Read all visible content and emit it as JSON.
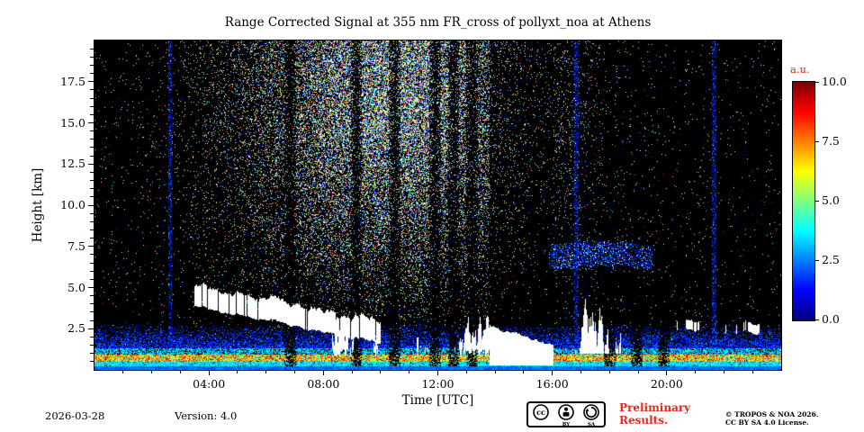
{
  "chart_data": {
    "type": "heatmap",
    "title": "Range Corrected Signal at 355 nm FR_cross of pollyxt_noa at Athens",
    "xlabel": "Time [UTC]",
    "ylabel": "Height [km]",
    "colorbar_label": "a.u.",
    "colormap": "jet",
    "grid": false,
    "x_range_hours": [
      0,
      24
    ],
    "y_range_km": [
      0,
      20
    ],
    "clim": [
      0,
      10
    ],
    "x_ticks": [
      {
        "value": 4,
        "label": "04:00"
      },
      {
        "value": 8,
        "label": "08:00"
      },
      {
        "value": 12,
        "label": "12:00"
      },
      {
        "value": 16,
        "label": "16:00"
      },
      {
        "value": 20,
        "label": "20:00"
      }
    ],
    "y_ticks": [
      {
        "value": 2.5,
        "label": "2.5"
      },
      {
        "value": 5.0,
        "label": "5.0"
      },
      {
        "value": 7.5,
        "label": "7.5"
      },
      {
        "value": 10.0,
        "label": "10.0"
      },
      {
        "value": 12.5,
        "label": "12.5"
      },
      {
        "value": 15.0,
        "label": "15.0"
      },
      {
        "value": 17.5,
        "label": "17.5"
      }
    ],
    "colorbar_ticks": [
      {
        "value": 0.0,
        "label": "0.0"
      },
      {
        "value": 2.5,
        "label": "2.5"
      },
      {
        "value": 5.0,
        "label": "5.0"
      },
      {
        "value": 7.5,
        "label": "7.5"
      },
      {
        "value": 10.0,
        "label": "10.0"
      }
    ],
    "features": {
      "description": "Lidar range-corrected-signal quicklook: dense boundary-layer aerosol below ~2.5 km all day with a strong overlap peak near 0.5-1 km; saturated (white) cloud band descending from ~5.2 km at 03:30 to ~2.9 km by 10:00; broken low clouds 08:20-13:55 between ~0.8-3.2 km; opaque low cloud 13:50-16:05 below ~2.6 km with attenuation above; elevated layer at ~6.2-7.7 km from 16:00-19:30; scattered clouds 16:50-18:25 up to ~4.3 km; thin cloud streaks near 2.6 km 20:00-23:50; strong solar background speckle noise 06:00-15:00 increasing with height; narrow full-height signal columns near 02:40, 16:50 and 21:40.",
      "daytime_noise": {
        "t_center": 10.3,
        "t_sigma": 3.0
      },
      "surface_layer_top_km": 1.3,
      "aerosol_top_km": 2.7,
      "cloud_descent": {
        "t_start": 3.5,
        "h_start": 5.2,
        "t_end": 10.0,
        "h_end": 2.9
      },
      "broken_clouds": {
        "t_start": 8.3,
        "t_end": 13.9,
        "h_min": 0.8,
        "h_max": 3.2
      },
      "opaque_cloud": {
        "t_start": 13.8,
        "t_end": 16.05,
        "h_min": 0.3,
        "h_max": 2.6
      },
      "elevated_layer": {
        "t_start": 15.9,
        "t_end": 19.5,
        "h_min": 6.2,
        "h_max": 7.7
      },
      "evening_clouds": {
        "t_start": 16.8,
        "t_end": 18.4,
        "h_min": 1.0,
        "h_max": 4.3
      },
      "late_streaks": {
        "t_start": 20.0,
        "t_end": 23.9,
        "h_km": 2.6
      },
      "dark_stripes_t": [
        6.85,
        9.15,
        10.5,
        11.9,
        12.55,
        13.2,
        18.0,
        18.95,
        19.9
      ],
      "column_artifacts_t": [
        2.65,
        16.85,
        21.65
      ]
    }
  },
  "footer": {
    "date": "2026-03-28",
    "version": "Version: 4.0",
    "preliminary_line1": "Preliminary",
    "preliminary_line2": "Results.",
    "copyright_line1": "© TROPOS & NOA 2026.",
    "copyright_line2": "CC BY SA 4.0 License.",
    "badge_cc": "cc",
    "badge_by": "BY",
    "badge_sa": "SA"
  },
  "colors": {
    "colorbar_label": "#d62718",
    "preliminary": "#e8251f",
    "plot_background": "#000000"
  }
}
